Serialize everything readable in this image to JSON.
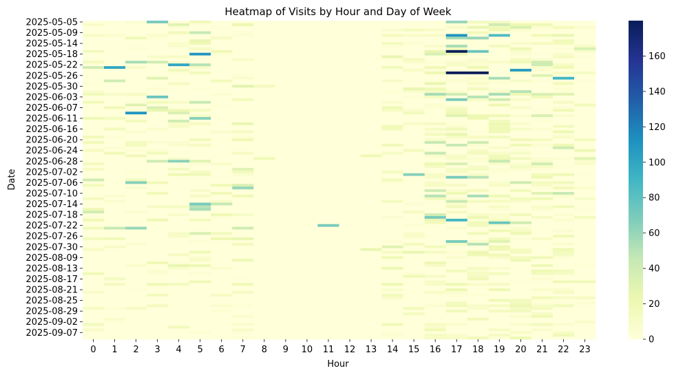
{
  "chart_data": {
    "type": "heatmap",
    "title": "Heatmap of Visits by Hour and Day of Week",
    "xlabel": "Hour",
    "ylabel": "Date",
    "x_categories": [
      "0",
      "1",
      "2",
      "3",
      "4",
      "5",
      "6",
      "7",
      "8",
      "9",
      "10",
      "11",
      "12",
      "13",
      "14",
      "15",
      "16",
      "17",
      "18",
      "19",
      "20",
      "21",
      "22",
      "23"
    ],
    "y_tick_labels": [
      "2025-05-05",
      "2025-05-09",
      "2025-05-14",
      "2025-05-18",
      "2025-05-22",
      "2025-05-26",
      "2025-05-30",
      "2025-06-03",
      "2025-06-07",
      "2025-06-11",
      "2025-06-16",
      "2025-06-20",
      "2025-06-24",
      "2025-06-28",
      "2025-07-02",
      "2025-07-06",
      "2025-07-10",
      "2025-07-14",
      "2025-07-18",
      "2025-07-22",
      "2025-07-26",
      "2025-07-30",
      "2025-08-09",
      "2025-08-13",
      "2025-08-17",
      "2025-08-21",
      "2025-08-25",
      "2025-08-29",
      "2025-09-02",
      "2025-09-07"
    ],
    "row_count": 119,
    "colorbar": {
      "min": 0,
      "max": 180,
      "ticks": [
        0,
        20,
        40,
        60,
        80,
        100,
        120,
        140,
        160
      ],
      "colormap": "YlGnBu"
    },
    "cells": [
      [
        0,
        17,
        60
      ],
      [
        0,
        3,
        70
      ],
      [
        1,
        19,
        40
      ],
      [
        1,
        4,
        30
      ],
      [
        2,
        18,
        25
      ],
      [
        2,
        20,
        35
      ],
      [
        3,
        15,
        15
      ],
      [
        4,
        5,
        45
      ],
      [
        5,
        17,
        110
      ],
      [
        6,
        18,
        60
      ],
      [
        5,
        19,
        85
      ],
      [
        5,
        22,
        25
      ],
      [
        6,
        17,
        55
      ],
      [
        5,
        16,
        10
      ],
      [
        7,
        5,
        25
      ],
      [
        8,
        5,
        20
      ],
      [
        9,
        17,
        55
      ],
      [
        10,
        23,
        35
      ],
      [
        11,
        17,
        180
      ],
      [
        11,
        18,
        75
      ],
      [
        12,
        5,
        110
      ],
      [
        12,
        16,
        35
      ],
      [
        11,
        16,
        25
      ],
      [
        13,
        14,
        25
      ],
      [
        14,
        7,
        10
      ],
      [
        14,
        15,
        15
      ],
      [
        15,
        2,
        55
      ],
      [
        15,
        3,
        40
      ],
      [
        16,
        4,
        100
      ],
      [
        16,
        5,
        50
      ],
      [
        15,
        21,
        40
      ],
      [
        16,
        21,
        40
      ],
      [
        17,
        0,
        40
      ],
      [
        17,
        1,
        100
      ],
      [
        17,
        16,
        20
      ],
      [
        18,
        20,
        105
      ],
      [
        19,
        17,
        180
      ],
      [
        19,
        18,
        180
      ],
      [
        20,
        21,
        30
      ],
      [
        21,
        22,
        90
      ],
      [
        21,
        19,
        55
      ],
      [
        21,
        3,
        30
      ],
      [
        22,
        1,
        40
      ],
      [
        23,
        16,
        25
      ],
      [
        24,
        7,
        30
      ],
      [
        24,
        8,
        15
      ],
      [
        25,
        16,
        20
      ],
      [
        25,
        15,
        25
      ],
      [
        26,
        20,
        50
      ],
      [
        27,
        16,
        55
      ],
      [
        27,
        17,
        40
      ],
      [
        27,
        19,
        55
      ],
      [
        27,
        21,
        35
      ],
      [
        27,
        22,
        30
      ],
      [
        28,
        3,
        75
      ],
      [
        28,
        18,
        50
      ],
      [
        29,
        17,
        70
      ],
      [
        29,
        19,
        40
      ],
      [
        30,
        5,
        45
      ],
      [
        31,
        2,
        30
      ],
      [
        32,
        3,
        35
      ],
      [
        33,
        3,
        25
      ],
      [
        33,
        4,
        20
      ],
      [
        34,
        2,
        110
      ],
      [
        34,
        4,
        35
      ],
      [
        35,
        17,
        30
      ],
      [
        35,
        21,
        35
      ],
      [
        36,
        5,
        65
      ],
      [
        37,
        4,
        40
      ],
      [
        38,
        7,
        25
      ],
      [
        40,
        14,
        15
      ],
      [
        42,
        17,
        25
      ],
      [
        44,
        7,
        20
      ],
      [
        45,
        16,
        45
      ],
      [
        45,
        18,
        40
      ],
      [
        46,
        17,
        45
      ],
      [
        47,
        22,
        40
      ],
      [
        48,
        15,
        15
      ],
      [
        49,
        16,
        45
      ],
      [
        50,
        13,
        20
      ],
      [
        51,
        8,
        20
      ],
      [
        51,
        23,
        30
      ],
      [
        52,
        3,
        40
      ],
      [
        52,
        4,
        65
      ],
      [
        52,
        5,
        30
      ],
      [
        52,
        19,
        45
      ],
      [
        53,
        17,
        35
      ],
      [
        53,
        21,
        40
      ],
      [
        55,
        7,
        30
      ],
      [
        57,
        15,
        65
      ],
      [
        58,
        18,
        50
      ],
      [
        58,
        17,
        70
      ],
      [
        59,
        0,
        40
      ],
      [
        60,
        2,
        65
      ],
      [
        60,
        20,
        40
      ],
      [
        61,
        7,
        35
      ],
      [
        62,
        7,
        60
      ],
      [
        63,
        16,
        40
      ],
      [
        64,
        21,
        30
      ],
      [
        64,
        22,
        45
      ],
      [
        65,
        18,
        55
      ],
      [
        65,
        16,
        50
      ],
      [
        67,
        14,
        15
      ],
      [
        67,
        17,
        45
      ],
      [
        68,
        5,
        70
      ],
      [
        68,
        6,
        45
      ],
      [
        69,
        5,
        50
      ],
      [
        70,
        5,
        55
      ],
      [
        71,
        0,
        40
      ],
      [
        72,
        16,
        40
      ],
      [
        73,
        16,
        70
      ],
      [
        74,
        17,
        90
      ],
      [
        75,
        19,
        75
      ],
      [
        75,
        20,
        40
      ],
      [
        76,
        11,
        70
      ],
      [
        77,
        1,
        45
      ],
      [
        77,
        2,
        60
      ],
      [
        77,
        7,
        40
      ],
      [
        78,
        19,
        20
      ],
      [
        79,
        5,
        35
      ],
      [
        81,
        7,
        25
      ],
      [
        82,
        17,
        70
      ],
      [
        82,
        19,
        30
      ],
      [
        83,
        18,
        50
      ],
      [
        84,
        14,
        30
      ],
      [
        85,
        13,
        25
      ],
      [
        86,
        15,
        25
      ],
      [
        88,
        14,
        20
      ],
      [
        90,
        3,
        20
      ],
      [
        91,
        4,
        25
      ]
    ],
    "noise_seed": 7
  }
}
